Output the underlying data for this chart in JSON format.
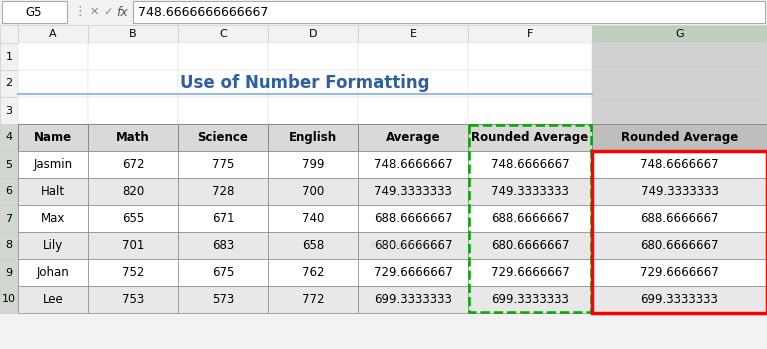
{
  "title": "Use of Number Formatting",
  "formula_bar_cell": "G5",
  "formula_bar_value": "748.6666666666667",
  "col_headers": [
    "A",
    "B",
    "C",
    "D",
    "E",
    "F",
    "G"
  ],
  "table_headers": [
    "Name",
    "Math",
    "Science",
    "English",
    "Average",
    "Rounded Average"
  ],
  "rows": [
    [
      "Jasmin",
      "672",
      "775",
      "799",
      "748.6666667",
      "748.6666667"
    ],
    [
      "Halt",
      "820",
      "728",
      "700",
      "749.3333333",
      "749.3333333"
    ],
    [
      "Max",
      "655",
      "671",
      "740",
      "688.6666667",
      "688.6666667"
    ],
    [
      "Lily",
      "701",
      "683",
      "658",
      "680.6666667",
      "680.6666667"
    ],
    [
      "Johan",
      "752",
      "675",
      "762",
      "729.6666667",
      "729.6666667"
    ],
    [
      "Lee",
      "753",
      "573",
      "772",
      "699.3333333",
      "699.3333333"
    ]
  ],
  "title_color": "#2E5FA3",
  "header_bg": "#D9D9D9",
  "alt_row_bg": "#E8E8E8",
  "white_row_bg": "#FFFFFF",
  "col_g_header_bg": "#BEBEBE",
  "col_g_row_bg": "#D0D0D0",
  "red_border_color": "#FF0000",
  "green_dashed_color": "#00AA00",
  "excel_bg": "#F2F2F2",
  "col_header_selected_bg": "#BFCFBF",
  "row_header_selected_bg": "#D0D8D0",
  "watermark_color": "#AABBCC",
  "col_starts": [
    0,
    18,
    88,
    178,
    268,
    358,
    468,
    592,
    767
  ]
}
